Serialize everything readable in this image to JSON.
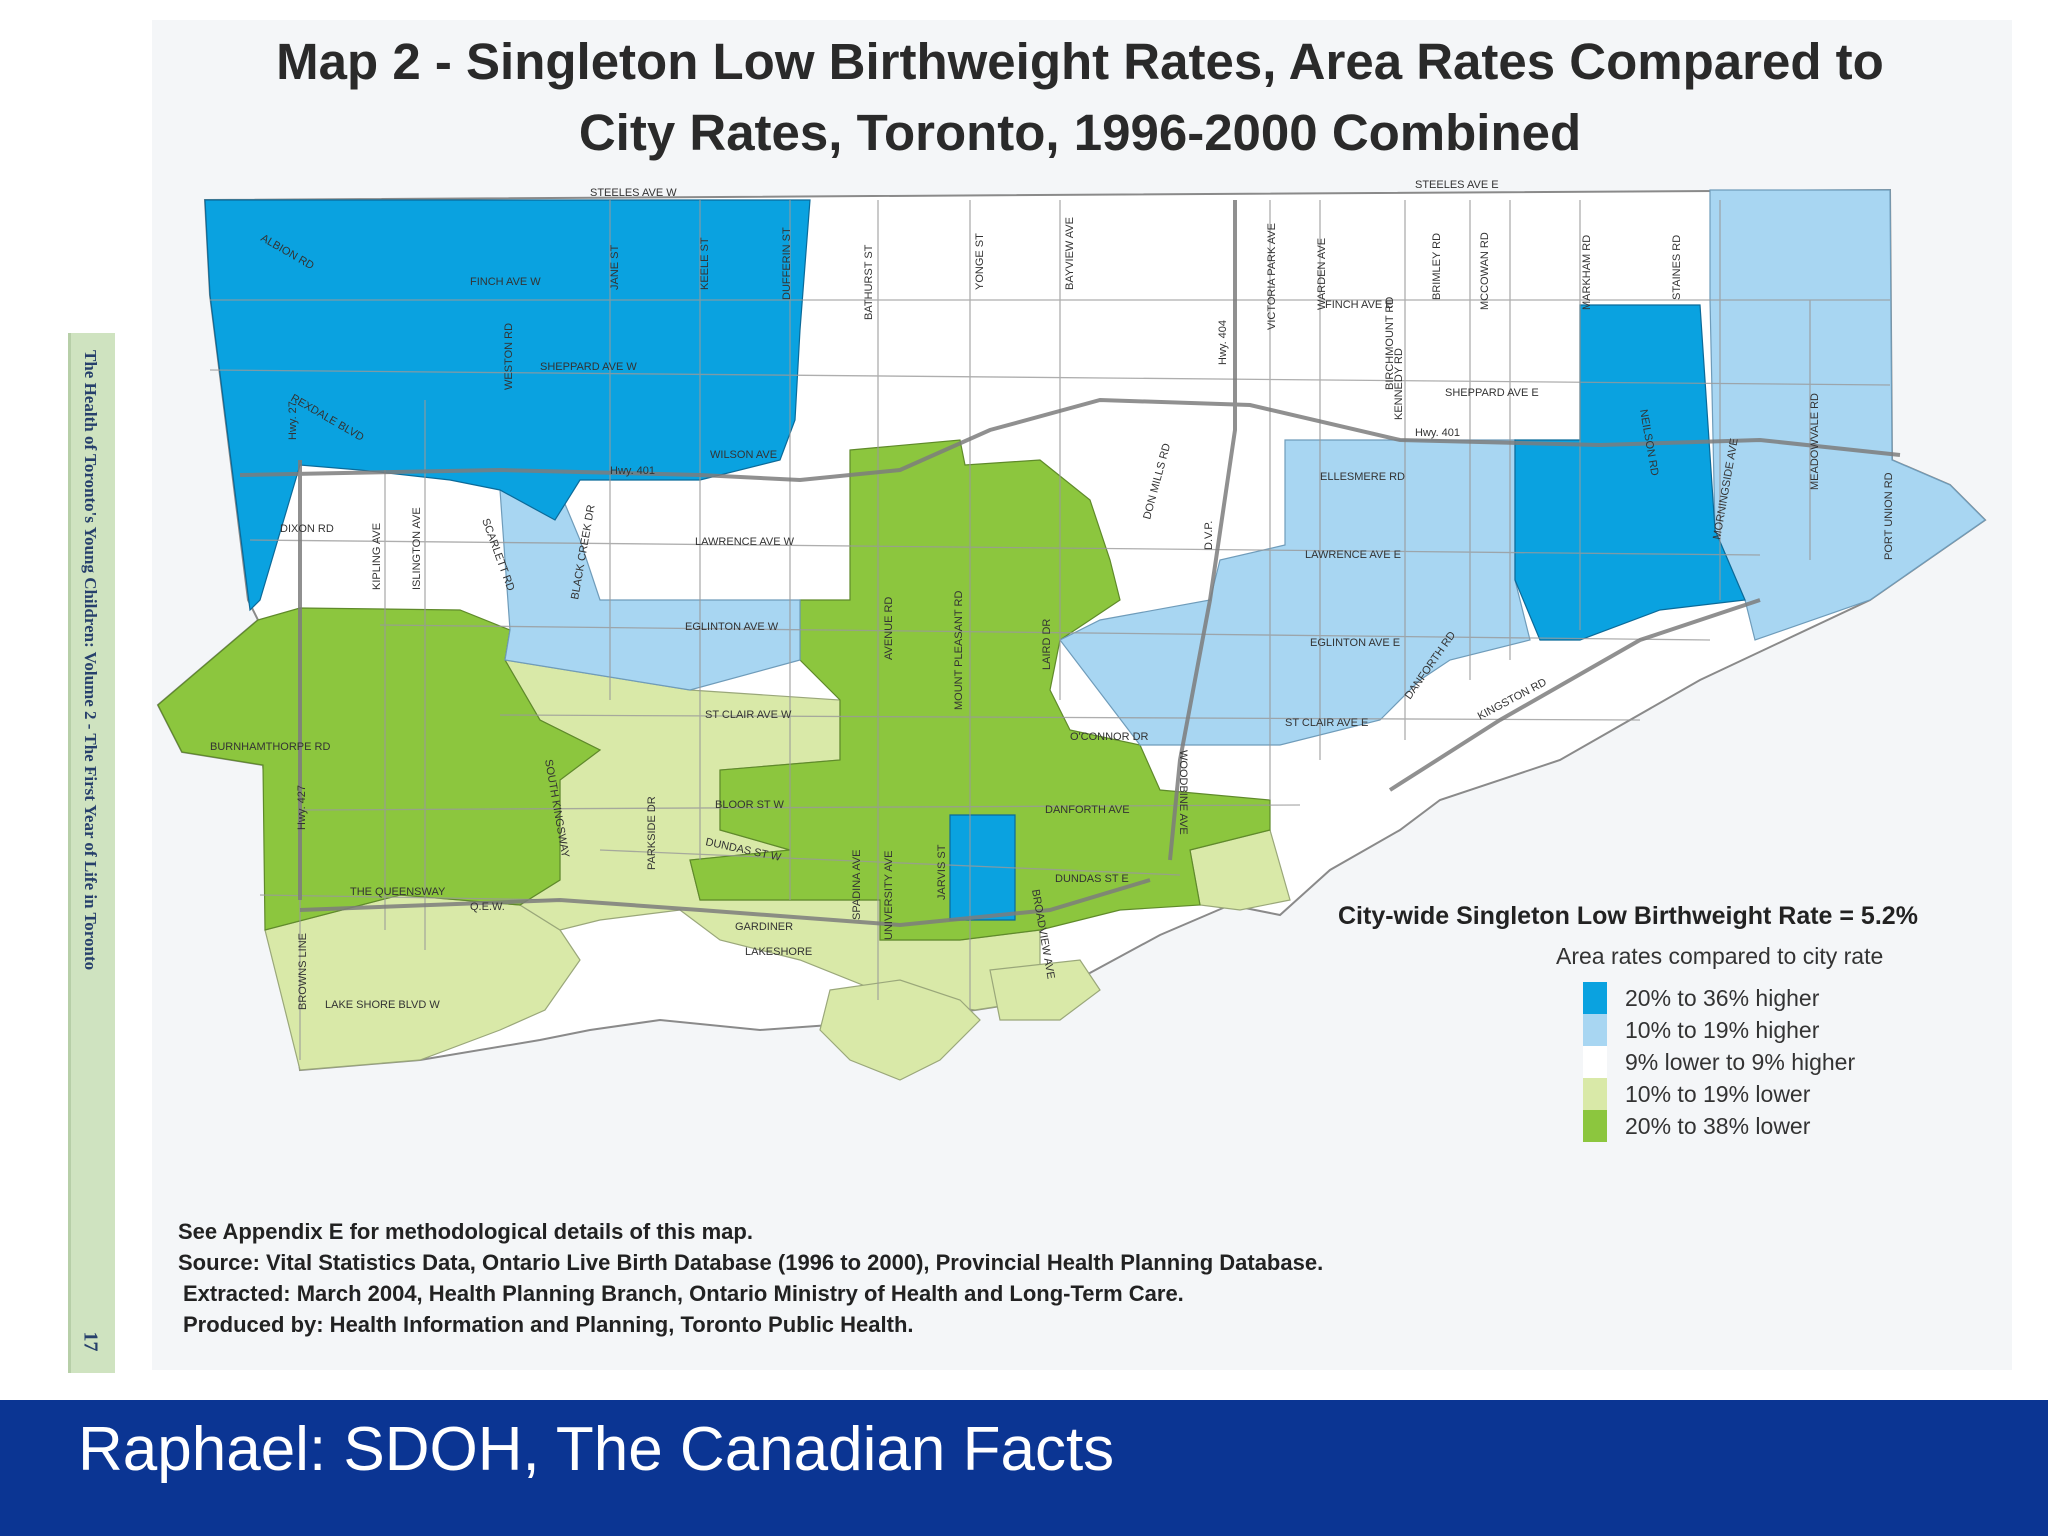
{
  "sidebar": {
    "text": "The Health of Toronto's Young Children: Volume 2 - The First Year of Life in Toronto",
    "page_number": "17"
  },
  "map": {
    "title_line1": "Map 2 - Singleton Low Birthweight Rates, Area Rates Compared to",
    "title_line2": "City Rates, Toronto, 1996-2000 Combined",
    "road_labels": {
      "steeles_w": "STEELES AVE W",
      "steeles_e": "STEELES AVE E",
      "albion": "ALBION RD",
      "finch_w": "FINCH AVE W",
      "finch_e": "FINCH AVE E",
      "sheppard_w": "SHEPPARD AVE W",
      "sheppard_e": "SHEPPARD AVE E",
      "rexdale": "REXDALE BLVD",
      "hwy401_w": "Hwy. 401",
      "hwy401_e": "Hwy. 401",
      "wilson": "WILSON AVE",
      "lawrence_w": "LAWRENCE AVE W",
      "lawrence_e": "LAWRENCE AVE E",
      "ellesmere": "ELLESMERE RD",
      "eglinton_w": "EGLINTON AVE W",
      "eglinton_e": "EGLINTON AVE E",
      "st_clair_w": "ST CLAIR AVE W",
      "st_clair_e": "ST CLAIR AVE E",
      "bloor": "BLOOR ST W",
      "dundas_w": "DUNDAS ST W",
      "dundas_e": "DUNDAS ST E",
      "danforth_ave": "DANFORTH AVE",
      "oconnor": "O'CONNOR DR",
      "burnhamthorpe": "BURNHAMTHORPE RD",
      "queensway": "THE QUEENSWAY",
      "qew": "Q.E.W.",
      "lake_shore": "LAKE SHORE BLVD W",
      "gardiner": "GARDINER",
      "lakeshore": "LAKESHORE",
      "kingston": "KINGSTON RD",
      "danforth_rd": "DANFORTH RD",
      "dixon": "DIXON RD",
      "bathurst": "BATHURST ST",
      "yonge": "YONGE ST",
      "bayview": "BAYVIEW AVE",
      "victoria_park": "VICTORIA PARK AVE",
      "warden": "WARDEN AVE",
      "kennedy": "KENNEDY RD",
      "birchmount": "BIRCHMOUNT RD",
      "brimley": "BRIMLEY RD",
      "mccowan": "MCCOWAN RD",
      "markham": "MARKHAM RD",
      "neilson": "NEILSON RD",
      "staines": "STAINES RD",
      "morningside": "MORNINGSIDE AVE",
      "meadowvale": "MEADOWVALE RD",
      "port_union": "PORT UNION RD",
      "don_mills": "DON MILLS RD",
      "dvp": "D.V.P.",
      "hwy404": "Hwy. 404",
      "kipling": "KIPLING AVE",
      "islington": "ISLINGTON AVE",
      "scarlett": "SCARLETT RD",
      "black_creek": "BLACK CREEK DR",
      "weston": "WESTON RD",
      "jane": "JANE ST",
      "keele": "KEELE ST",
      "dufferin": "DUFFERIN ST",
      "hwy27": "Hwy. 27",
      "hwy427": "Hwy. 427",
      "browns_line": "BROWNS LINE",
      "south_kingsway": "SOUTH KINGSWAY",
      "parkside": "PARKSIDE DR",
      "spadina": "SPADINA AVE",
      "university": "UNIVERSITY AVE",
      "jarvis": "JARVIS ST",
      "broadview": "BROADVIEW AVE",
      "woodbine": "WOODBINE AVE",
      "avenue": "AVENUE RD",
      "mount_pleasant": "MOUNT PLEASANT RD",
      "laird": "LAIRD DR"
    }
  },
  "legend": {
    "heading": "City-wide Singleton Low Birthweight Rate = 5.2%",
    "subheading": "Area rates compared to city rate",
    "items": [
      {
        "label": "20% to 36% higher",
        "color": "#0aa2e0"
      },
      {
        "label": "10% to 19% higher",
        "color": "#a8d6f2"
      },
      {
        "label": "9% lower to 9% higher",
        "color": "#ffffff"
      },
      {
        "label": "10% to 19% lower",
        "color": "#d9e9a8"
      },
      {
        "label": "20% to 38% lower",
        "color": "#8cc63e"
      }
    ]
  },
  "notes": {
    "line1": "See Appendix E for methodological  details of this map.",
    "line2": "Source:  Vital Statistics Data, Ontario Live Birth  Database (1996 to 2000), Provincial Health Planning Database.",
    "line3": "Extracted: March 2004, Health Planning Branch, Ontario Ministry of Health and Long-Term Care.",
    "line4": "Produced by: Health Information and Planning, Toronto Public Health."
  },
  "footer": {
    "caption": "Raphael:  SDOH, The Canadian Facts"
  }
}
